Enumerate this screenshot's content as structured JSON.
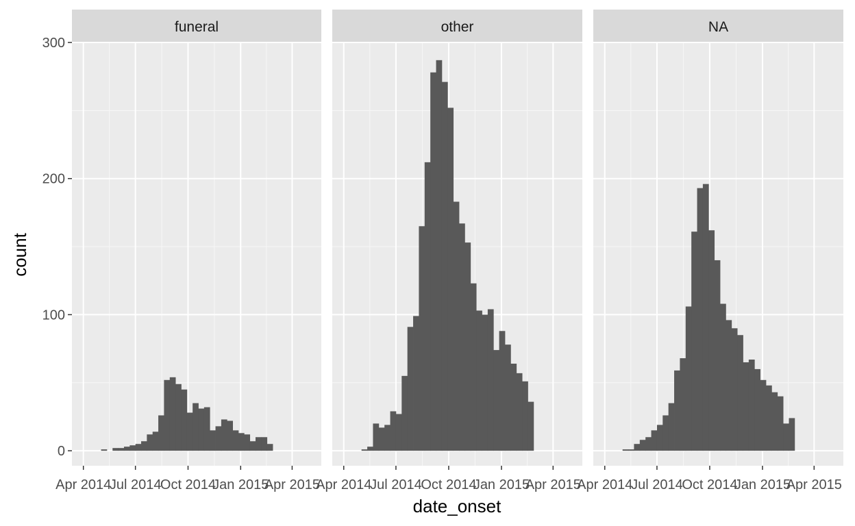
{
  "chart_data": {
    "type": "bar",
    "subtype": "faceted histogram",
    "xlabel": "date_onset",
    "ylabel": "count",
    "ylim": [
      -11,
      300
    ],
    "y_ticks": [
      0,
      100,
      200,
      300
    ],
    "x_ticks": [
      {
        "label": "Apr 2014",
        "date": "2014-04-01"
      },
      {
        "label": "Jul 2014",
        "date": "2014-07-01"
      },
      {
        "label": "Oct 2014",
        "date": "2014-10-01"
      },
      {
        "label": "Jan 2015",
        "date": "2015-01-01"
      },
      {
        "label": "Apr 2015",
        "date": "2015-04-01"
      }
    ],
    "xlim": [
      "2014-03-12",
      "2015-05-22"
    ],
    "bin_start": "2014-04-22",
    "bin_width_days": 10,
    "bar_color": "#595959",
    "panel_background": "#ebebeb",
    "strip_background": "#d9d9d9",
    "grid": true,
    "facets": [
      {
        "label": "funeral",
        "values": [
          0,
          1,
          0,
          2,
          2,
          3,
          4,
          5,
          7,
          12,
          14,
          26,
          52,
          54,
          49,
          45,
          28,
          35,
          31,
          32,
          15,
          18,
          23,
          22,
          15,
          13,
          12,
          7,
          10,
          10,
          5,
          0,
          0
        ]
      },
      {
        "label": "other",
        "values": [
          0,
          1,
          3,
          20,
          17,
          19,
          29,
          27,
          55,
          91,
          99,
          165,
          212,
          278,
          287,
          271,
          252,
          183,
          167,
          153,
          123,
          103,
          100,
          104,
          74,
          88,
          78,
          64,
          57,
          51,
          36,
          0,
          0
        ]
      },
      {
        "label": "NA",
        "values": [
          0,
          1,
          1,
          5,
          8,
          10,
          15,
          19,
          26,
          35,
          59,
          68,
          106,
          161,
          193,
          196,
          162,
          140,
          108,
          96,
          90,
          85,
          65,
          67,
          60,
          52,
          48,
          43,
          40,
          20,
          24,
          0,
          0
        ]
      }
    ]
  }
}
